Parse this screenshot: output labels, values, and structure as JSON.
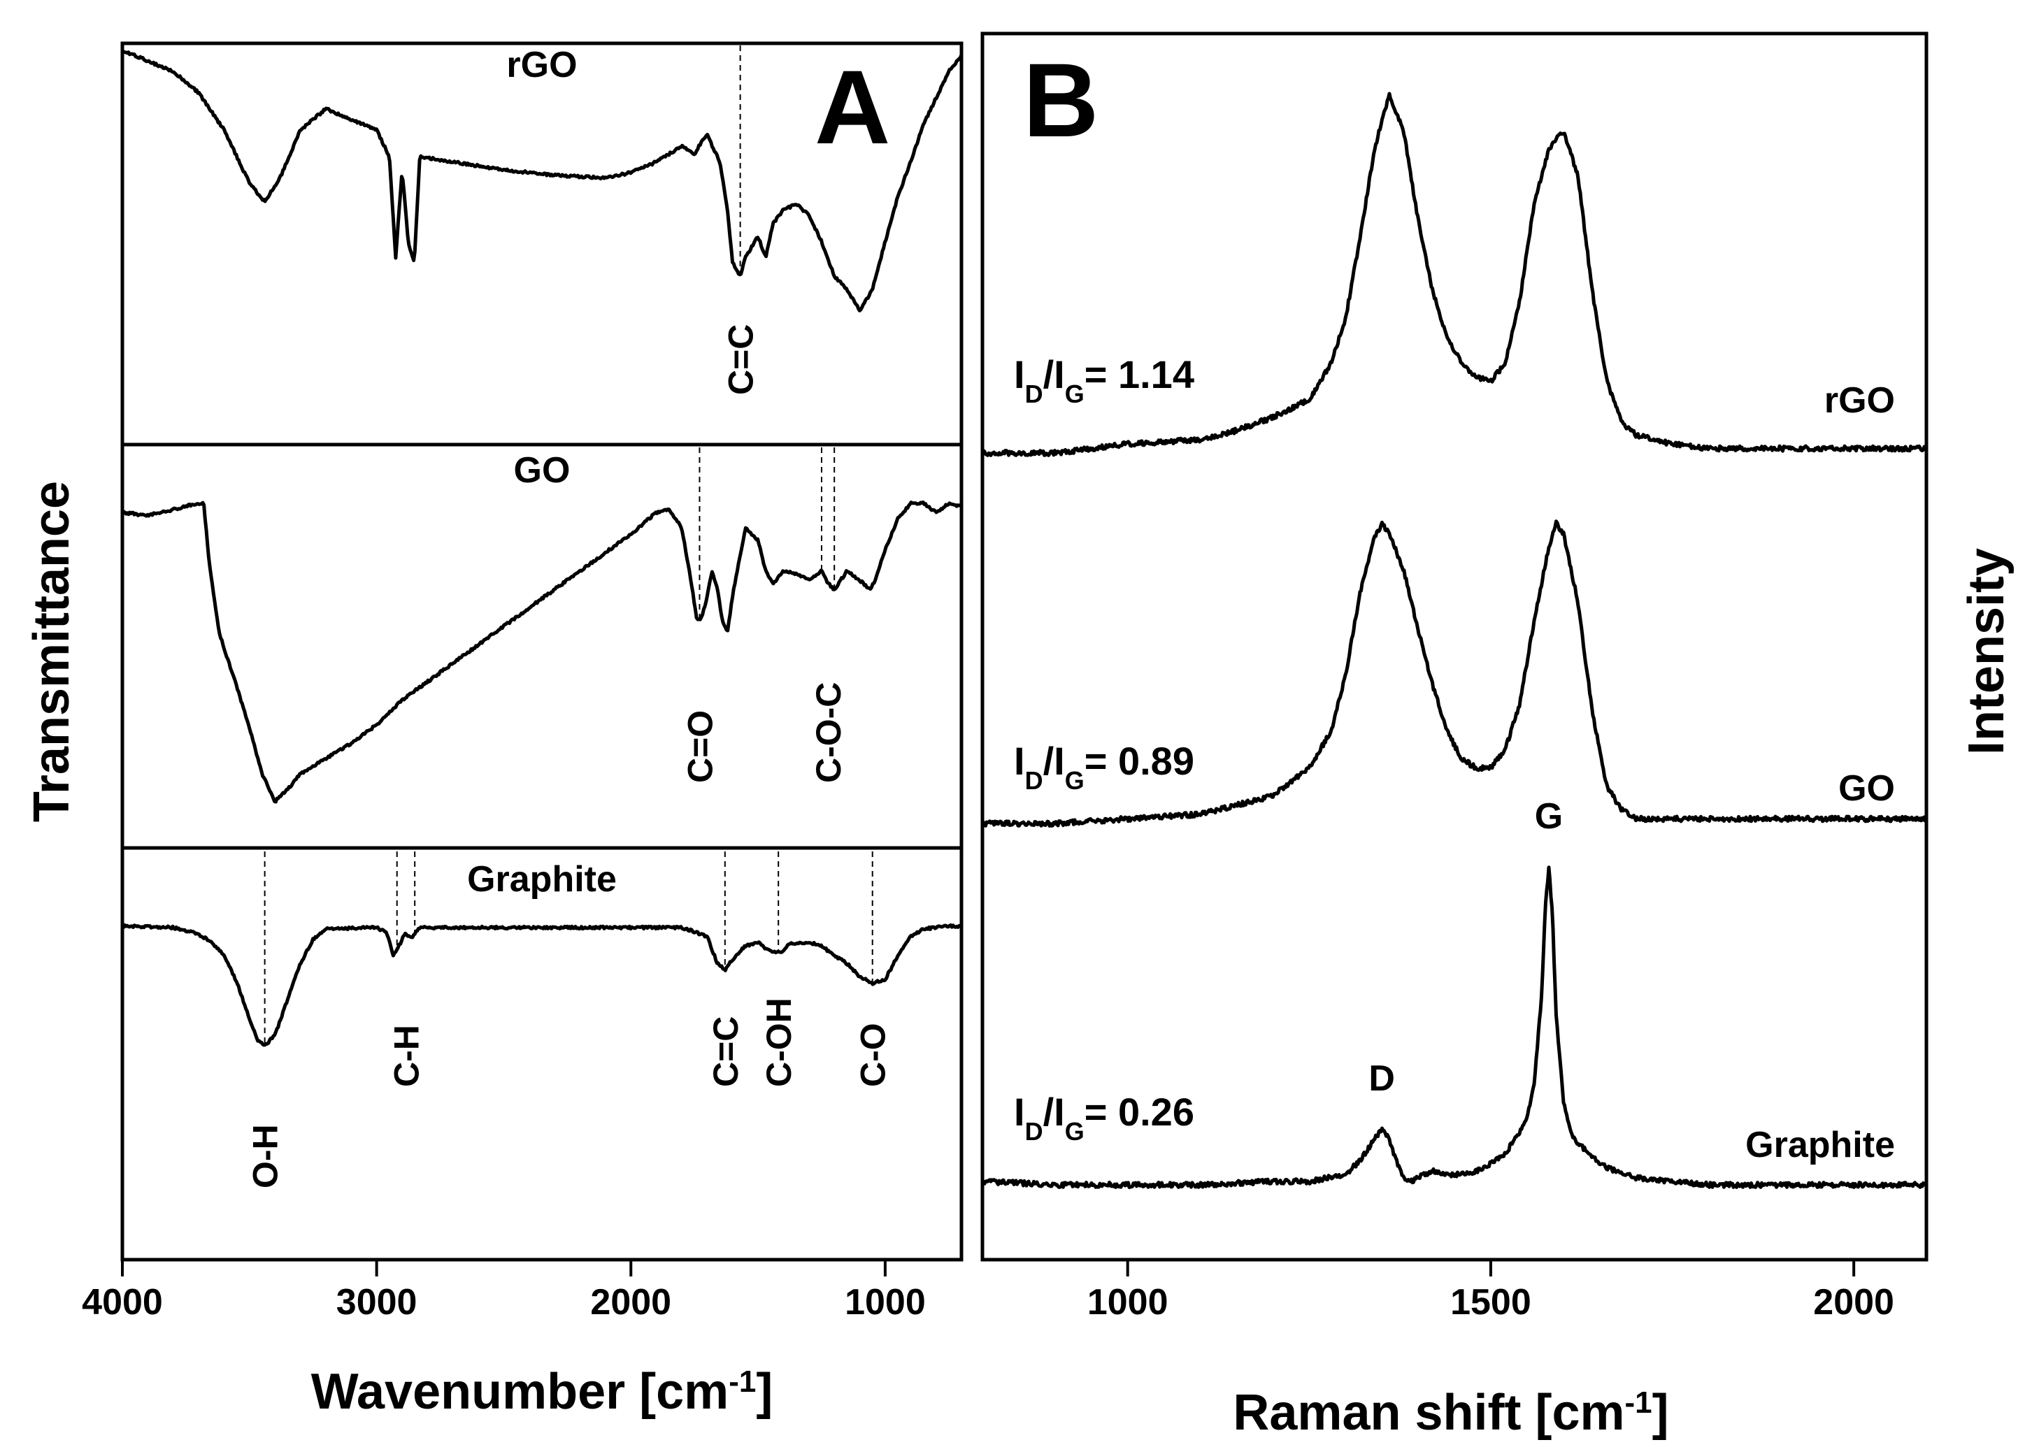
{
  "chart_data": [
    {
      "panel": "A",
      "type": "line",
      "title": "",
      "xlabel": "Wavenumber [cm",
      "xlabel_sup": "-1",
      "xlabel_close": "]",
      "ylabel": "Transmittance",
      "xlim": [
        4000,
        700
      ],
      "xticks": [
        4000,
        3000,
        2000,
        1000
      ],
      "xtick_labels": [
        "4000",
        "3000",
        "2000",
        "1000"
      ],
      "series": [
        {
          "name": "rGO",
          "x": [
            4000,
            3900,
            3800,
            3700,
            3600,
            3500,
            3440,
            3380,
            3300,
            3200,
            3100,
            3000,
            2950,
            2925,
            2900,
            2875,
            2852,
            2830,
            2700,
            2500,
            2300,
            2100,
            2000,
            1900,
            1800,
            1750,
            1720,
            1700,
            1650,
            1620,
            1600,
            1570,
            1550,
            1500,
            1470,
            1440,
            1400,
            1350,
            1300,
            1250,
            1200,
            1150,
            1100,
            1050,
            1000,
            950,
            900,
            850,
            800,
            750,
            700
          ],
          "y": [
            0.0,
            0.04,
            0.08,
            0.16,
            0.3,
            0.5,
            0.57,
            0.48,
            0.3,
            0.22,
            0.26,
            0.3,
            0.4,
            0.78,
            0.45,
            0.73,
            0.8,
            0.4,
            0.42,
            0.45,
            0.47,
            0.48,
            0.46,
            0.42,
            0.36,
            0.39,
            0.34,
            0.32,
            0.42,
            0.6,
            0.8,
            0.85,
            0.78,
            0.7,
            0.78,
            0.65,
            0.6,
            0.58,
            0.62,
            0.72,
            0.85,
            0.9,
            0.98,
            0.9,
            0.72,
            0.55,
            0.42,
            0.28,
            0.18,
            0.08,
            0.02
          ]
        },
        {
          "name": "GO",
          "x": [
            4000,
            3900,
            3800,
            3700,
            3680,
            3660,
            3620,
            3560,
            3500,
            3450,
            3400,
            3350,
            3300,
            3200,
            3100,
            3000,
            2900,
            2800,
            2600,
            2400,
            2200,
            2000,
            1900,
            1850,
            1800,
            1770,
            1740,
            1720,
            1700,
            1680,
            1660,
            1640,
            1620,
            1600,
            1550,
            1500,
            1470,
            1440,
            1400,
            1350,
            1300,
            1250,
            1225,
            1200,
            1150,
            1100,
            1060,
            1040,
            1000,
            950,
            900,
            850,
            800,
            750,
            700
          ],
          "y": [
            0.03,
            0.04,
            0.02,
            0.0,
            0.0,
            0.18,
            0.42,
            0.57,
            0.73,
            0.88,
            0.97,
            0.93,
            0.88,
            0.83,
            0.78,
            0.72,
            0.64,
            0.58,
            0.46,
            0.34,
            0.22,
            0.1,
            0.03,
            0.02,
            0.08,
            0.22,
            0.38,
            0.37,
            0.3,
            0.22,
            0.28,
            0.38,
            0.42,
            0.3,
            0.08,
            0.12,
            0.22,
            0.26,
            0.22,
            0.23,
            0.25,
            0.22,
            0.26,
            0.28,
            0.22,
            0.25,
            0.28,
            0.25,
            0.15,
            0.05,
            0.0,
            0.0,
            0.03,
            0.0,
            0.01
          ]
        },
        {
          "name": "Graphite",
          "x": [
            4000,
            3800,
            3700,
            3650,
            3600,
            3550,
            3500,
            3470,
            3440,
            3400,
            3350,
            3300,
            3250,
            3200,
            3000,
            2960,
            2935,
            2920,
            2890,
            2860,
            2852,
            2830,
            2700,
            2500,
            2300,
            2100,
            1900,
            1800,
            1750,
            1700,
            1660,
            1630,
            1600,
            1550,
            1500,
            1460,
            1420,
            1400,
            1380,
            1300,
            1250,
            1200,
            1150,
            1100,
            1050,
            1000,
            950,
            900,
            850,
            800,
            750,
            700
          ],
          "y": [
            0.0,
            0.01,
            0.06,
            0.12,
            0.22,
            0.42,
            0.7,
            0.85,
            0.9,
            0.82,
            0.55,
            0.28,
            0.1,
            0.02,
            0.01,
            0.05,
            0.22,
            0.18,
            0.06,
            0.08,
            0.06,
            0.01,
            0.01,
            0.01,
            0.01,
            0.01,
            0.01,
            0.01,
            0.04,
            0.08,
            0.28,
            0.33,
            0.25,
            0.15,
            0.12,
            0.18,
            0.2,
            0.18,
            0.13,
            0.12,
            0.15,
            0.22,
            0.28,
            0.38,
            0.43,
            0.4,
            0.22,
            0.08,
            0.02,
            0.01,
            0.0,
            0.0
          ]
        }
      ],
      "trace_labels": [
        "rGO",
        "GO",
        "Graphite"
      ],
      "annotations": [
        {
          "series": "rGO",
          "label": "C=C",
          "x": 1570
        },
        {
          "series": "GO",
          "label": "C=O",
          "x": 1730
        },
        {
          "series": "GO",
          "label": "C-O-C",
          "x": 1250
        },
        {
          "series": "GO",
          "label": "C-O-C",
          "x": 1200
        },
        {
          "series": "Graphite",
          "label": "O-H",
          "x": 3440
        },
        {
          "series": "Graphite",
          "label": "C-H",
          "x": 2920
        },
        {
          "series": "Graphite",
          "label": "C-H",
          "x": 2850
        },
        {
          "series": "Graphite",
          "label": "C=C",
          "x": 1630
        },
        {
          "series": "Graphite",
          "label": "C-OH",
          "x": 1420
        },
        {
          "series": "Graphite",
          "label": "C-O",
          "x": 1050
        }
      ],
      "panel_letter": "A"
    },
    {
      "panel": "B",
      "type": "line",
      "title": "",
      "xlabel": "Raman shift [cm",
      "xlabel_sup": "-1",
      "xlabel_close": "]",
      "ylabel": "Intensity",
      "xlim": [
        800,
        2100
      ],
      "xticks": [
        1000,
        1500,
        2000
      ],
      "xtick_labels": [
        "1000",
        "1500",
        "2000"
      ],
      "series": [
        {
          "name": "rGO",
          "x": [
            800,
            900,
            1000,
            1100,
            1150,
            1200,
            1250,
            1280,
            1300,
            1320,
            1340,
            1360,
            1380,
            1400,
            1420,
            1440,
            1460,
            1480,
            1500,
            1520,
            1540,
            1560,
            1580,
            1600,
            1620,
            1640,
            1660,
            1680,
            1700,
            1750,
            1800,
            1900,
            2000,
            2100
          ],
          "y": [
            0.0,
            0.0,
            0.02,
            0.03,
            0.05,
            0.08,
            0.12,
            0.2,
            0.3,
            0.48,
            0.68,
            0.8,
            0.72,
            0.52,
            0.36,
            0.26,
            0.2,
            0.17,
            0.16,
            0.2,
            0.34,
            0.56,
            0.68,
            0.72,
            0.62,
            0.36,
            0.16,
            0.07,
            0.04,
            0.02,
            0.01,
            0.01,
            0.01,
            0.01
          ]
        },
        {
          "name": "GO",
          "x": [
            800,
            900,
            1000,
            1100,
            1150,
            1200,
            1250,
            1280,
            1300,
            1320,
            1340,
            1350,
            1360,
            1380,
            1400,
            1420,
            1440,
            1460,
            1480,
            1500,
            1520,
            1540,
            1560,
            1580,
            1590,
            1600,
            1620,
            1640,
            1660,
            1680,
            1700,
            1750,
            1800,
            1900,
            2000,
            2100
          ],
          "y": [
            0.0,
            0.0,
            0.01,
            0.02,
            0.04,
            0.06,
            0.12,
            0.2,
            0.32,
            0.5,
            0.62,
            0.65,
            0.63,
            0.55,
            0.42,
            0.3,
            0.2,
            0.14,
            0.12,
            0.12,
            0.16,
            0.26,
            0.44,
            0.6,
            0.65,
            0.63,
            0.48,
            0.24,
            0.08,
            0.03,
            0.01,
            0.01,
            0.01,
            0.01,
            0.01,
            0.01
          ]
        },
        {
          "name": "Graphite",
          "x": [
            800,
            900,
            1000,
            1100,
            1200,
            1250,
            1300,
            1320,
            1340,
            1350,
            1360,
            1370,
            1380,
            1390,
            1400,
            1420,
            1440,
            1460,
            1480,
            1500,
            1520,
            1540,
            1550,
            1560,
            1570,
            1575,
            1580,
            1585,
            1590,
            1600,
            1610,
            1620,
            1640,
            1660,
            1700,
            1800,
            1900,
            2000,
            2100
          ],
          "y": [
            0.02,
            0.01,
            0.01,
            0.01,
            0.02,
            0.02,
            0.04,
            0.08,
            0.14,
            0.17,
            0.14,
            0.08,
            0.03,
            0.02,
            0.03,
            0.05,
            0.04,
            0.04,
            0.05,
            0.07,
            0.1,
            0.16,
            0.2,
            0.3,
            0.55,
            0.8,
            0.92,
            0.78,
            0.5,
            0.25,
            0.16,
            0.13,
            0.09,
            0.06,
            0.03,
            0.01,
            0.01,
            0.01,
            0.01
          ]
        }
      ],
      "trace_labels": [
        "rGO",
        "GO",
        "Graphite"
      ],
      "ratios": [
        {
          "series": "rGO",
          "value": "= 1.14"
        },
        {
          "series": "GO",
          "value": "= 0.89"
        },
        {
          "series": "Graphite",
          "value": "= 0.26"
        }
      ],
      "ratio_prefix": {
        "i": "I",
        "d": "D",
        "slash": "/",
        "g": "G"
      },
      "peak_labels": [
        {
          "label": "D",
          "x": 1350
        },
        {
          "label": "G",
          "x": 1580
        }
      ],
      "panel_letter": "B"
    }
  ]
}
